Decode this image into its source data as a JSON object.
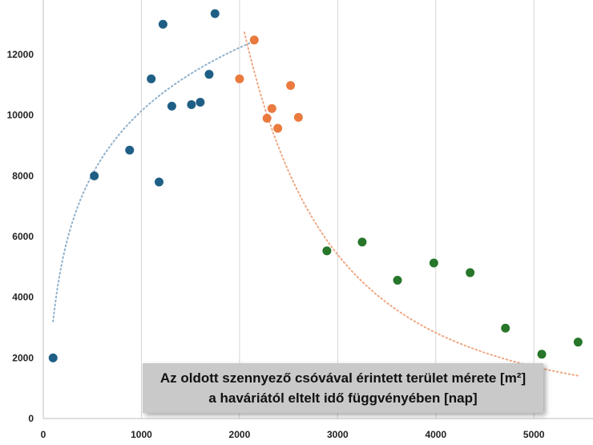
{
  "chart_data": {
    "type": "scatter",
    "title": "",
    "xlabel": "",
    "ylabel": "",
    "xlim": [
      0,
      5500
    ],
    "ylim": [
      0,
      13800
    ],
    "x_ticks": [
      0,
      1000,
      2000,
      3000,
      4000,
      5000
    ],
    "y_ticks": [
      0,
      2000,
      4000,
      6000,
      8000,
      10000,
      12000
    ],
    "grid": "vertical",
    "legend": "none",
    "caption": {
      "line1": "Az oldott szennyező csóvával érintett terület mérete [m²]",
      "line2": "a haváriától eltelt idő függvényében [nap]"
    },
    "series": [
      {
        "color": "#1f5f86",
        "x": [
          100,
          520,
          880,
          1100,
          1180,
          1220,
          1310,
          1510,
          1600,
          1690,
          1750
        ],
        "y": [
          2000,
          8000,
          8850,
          11200,
          7800,
          13000,
          10300,
          10350,
          10430,
          11350,
          13350
        ]
      },
      {
        "color": "#ea7a3e",
        "x": [
          2000,
          2150,
          2280,
          2330,
          2390,
          2520,
          2600
        ],
        "y": [
          11200,
          12480,
          9900,
          10220,
          9570,
          10980,
          9930
        ]
      },
      {
        "color": "#27762a",
        "x": [
          2890,
          3250,
          3610,
          3980,
          4350,
          4710,
          5080,
          5450
        ],
        "y": [
          5530,
          5820,
          4560,
          5130,
          4810,
          2980,
          2120,
          2520
        ]
      }
    ],
    "trendlines": [
      {
        "type": "logarithmic",
        "color": "#8fb1cc",
        "a": 3014,
        "b": 1068,
        "x_from": 100,
        "x_to": 2200
      },
      {
        "type": "power",
        "color": "#efa782",
        "a": 360000000000.0,
        "k": 2.25,
        "x_from": 2050,
        "x_to": 5450
      }
    ]
  }
}
